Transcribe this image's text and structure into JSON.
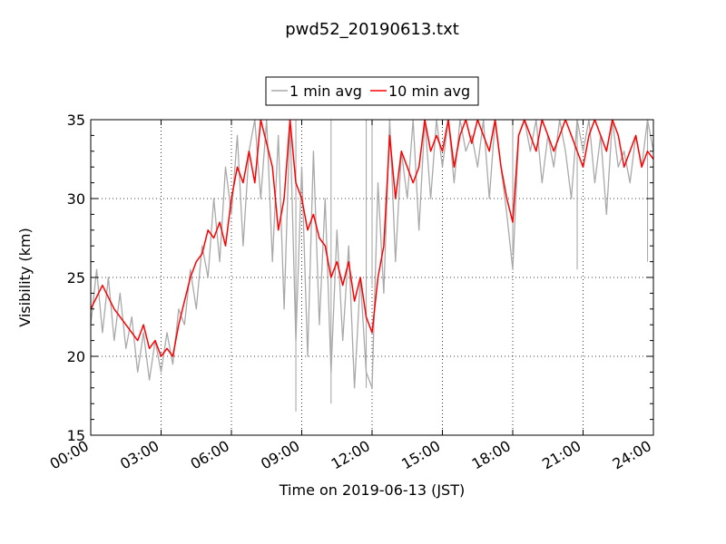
{
  "chart_data": {
    "type": "line",
    "title": "pwd52_20190613.txt",
    "xlabel": "Time on 2019-06-13 (JST)",
    "ylabel": "Visibility (km)",
    "xlim": [
      0,
      24
    ],
    "ylim": [
      15,
      35
    ],
    "x_unit": "hours",
    "x_ticks": [
      0,
      3,
      6,
      9,
      12,
      15,
      18,
      21,
      24
    ],
    "x_tick_labels": [
      "00:00",
      "03:00",
      "06:00",
      "09:00",
      "12:00",
      "15:00",
      "18:00",
      "21:00",
      "24:00"
    ],
    "y_ticks": [
      15,
      20,
      25,
      30,
      35
    ],
    "y_tick_labels": [
      "15",
      "20",
      "25",
      "30",
      "35"
    ],
    "grid": true,
    "legend_position": "top-center",
    "colors": {
      "one_min": "#a9a9a9",
      "ten_min": "#ff0000"
    },
    "series": [
      {
        "name": "1 min avg",
        "color": "#a9a9a9",
        "x": [
          0,
          0.25,
          0.5,
          0.75,
          1,
          1.25,
          1.5,
          1.75,
          2,
          2.25,
          2.5,
          2.75,
          3,
          3.25,
          3.5,
          3.75,
          4,
          4.25,
          4.5,
          4.75,
          5,
          5.25,
          5.5,
          5.75,
          6,
          6.25,
          6.5,
          6.75,
          7,
          7.25,
          7.5,
          7.75,
          8,
          8.25,
          8.5,
          8.75,
          9,
          9.25,
          9.5,
          9.75,
          10,
          10.25,
          10.5,
          10.75,
          11,
          11.25,
          11.5,
          11.75,
          12,
          12.25,
          12.5,
          12.75,
          13,
          13.25,
          13.5,
          13.75,
          14,
          14.25,
          14.5,
          14.75,
          15,
          15.25,
          15.5,
          15.75,
          16,
          16.25,
          16.5,
          16.75,
          17,
          17.25,
          17.5,
          17.75,
          18,
          18.25,
          18.5,
          18.75,
          19,
          19.25,
          19.5,
          19.75,
          20,
          20.25,
          20.5,
          20.75,
          21,
          21.25,
          21.5,
          21.75,
          22,
          22.25,
          22.5,
          22.75,
          23,
          23.25,
          23.5,
          23.75,
          24
        ],
        "y": [
          22,
          25.5,
          21.5,
          25,
          21,
          24,
          20.5,
          22.5,
          19,
          21.5,
          18.5,
          21,
          19,
          21.5,
          19.5,
          23,
          22,
          25.5,
          23,
          27,
          25,
          30,
          26,
          32,
          29,
          34,
          27,
          33,
          35,
          30,
          35,
          26,
          34,
          23,
          35,
          21,
          32,
          20,
          33,
          22,
          30,
          19,
          28,
          21,
          27,
          18,
          25,
          19,
          18,
          31,
          24,
          35,
          26,
          33,
          30,
          35,
          28,
          35,
          30,
          35,
          32,
          35,
          31,
          35,
          33,
          34,
          32,
          35,
          30,
          35,
          32,
          29,
          25.5,
          34,
          35,
          33,
          35,
          31,
          34,
          32,
          35,
          33,
          30,
          35,
          33,
          35,
          31,
          34,
          29,
          35,
          32,
          33,
          31,
          34,
          32,
          35,
          33
        ],
        "x_lines": [
          8.75,
          10.25,
          11.75,
          12,
          18,
          20.75,
          23.75
        ],
        "y_lines": [
          16.5,
          17,
          18,
          24.5,
          26.5,
          25.5,
          26
        ]
      },
      {
        "name": "10 min avg",
        "color": "#ff0000",
        "x": [
          0,
          0.5,
          1,
          1.5,
          2,
          2.25,
          2.5,
          2.75,
          3,
          3.25,
          3.5,
          3.75,
          4,
          4.25,
          4.5,
          4.75,
          5,
          5.25,
          5.5,
          5.75,
          6,
          6.25,
          6.5,
          6.75,
          7,
          7.25,
          7.5,
          7.75,
          8,
          8.25,
          8.5,
          8.75,
          9,
          9.25,
          9.5,
          9.75,
          10,
          10.25,
          10.5,
          10.75,
          11,
          11.25,
          11.5,
          11.75,
          12,
          12.25,
          12.5,
          12.75,
          13,
          13.25,
          13.5,
          13.75,
          14,
          14.25,
          14.5,
          14.75,
          15,
          15.25,
          15.5,
          15.75,
          16,
          16.25,
          16.5,
          16.75,
          17,
          17.25,
          17.5,
          17.75,
          18,
          18.25,
          18.5,
          18.75,
          19,
          19.25,
          19.5,
          19.75,
          20,
          20.25,
          20.5,
          20.75,
          21,
          21.25,
          21.5,
          21.75,
          22,
          22.25,
          22.5,
          22.75,
          23,
          23.25,
          23.5,
          23.75,
          24
        ],
        "y": [
          23,
          24.5,
          23,
          22,
          21,
          22,
          20.5,
          21,
          20,
          20.5,
          20,
          22,
          23.5,
          25,
          26,
          26.5,
          28,
          27.5,
          28.5,
          27,
          30,
          32,
          31,
          33,
          31,
          35,
          33.5,
          32,
          28,
          30,
          35,
          31,
          30,
          28,
          29,
          27.5,
          27,
          25,
          26,
          24.5,
          26,
          23.5,
          25,
          22.5,
          21.5,
          25,
          27,
          34,
          30,
          33,
          32,
          31,
          32,
          35,
          33,
          34,
          33,
          35,
          32,
          34,
          35,
          33.5,
          35,
          34,
          33,
          35,
          32,
          30,
          28.5,
          34,
          35,
          34,
          33,
          35,
          34,
          33,
          34,
          35,
          34,
          33,
          32,
          34,
          35,
          34,
          33,
          35,
          34,
          32,
          33,
          34,
          32,
          33,
          32.5
        ]
      }
    ]
  }
}
